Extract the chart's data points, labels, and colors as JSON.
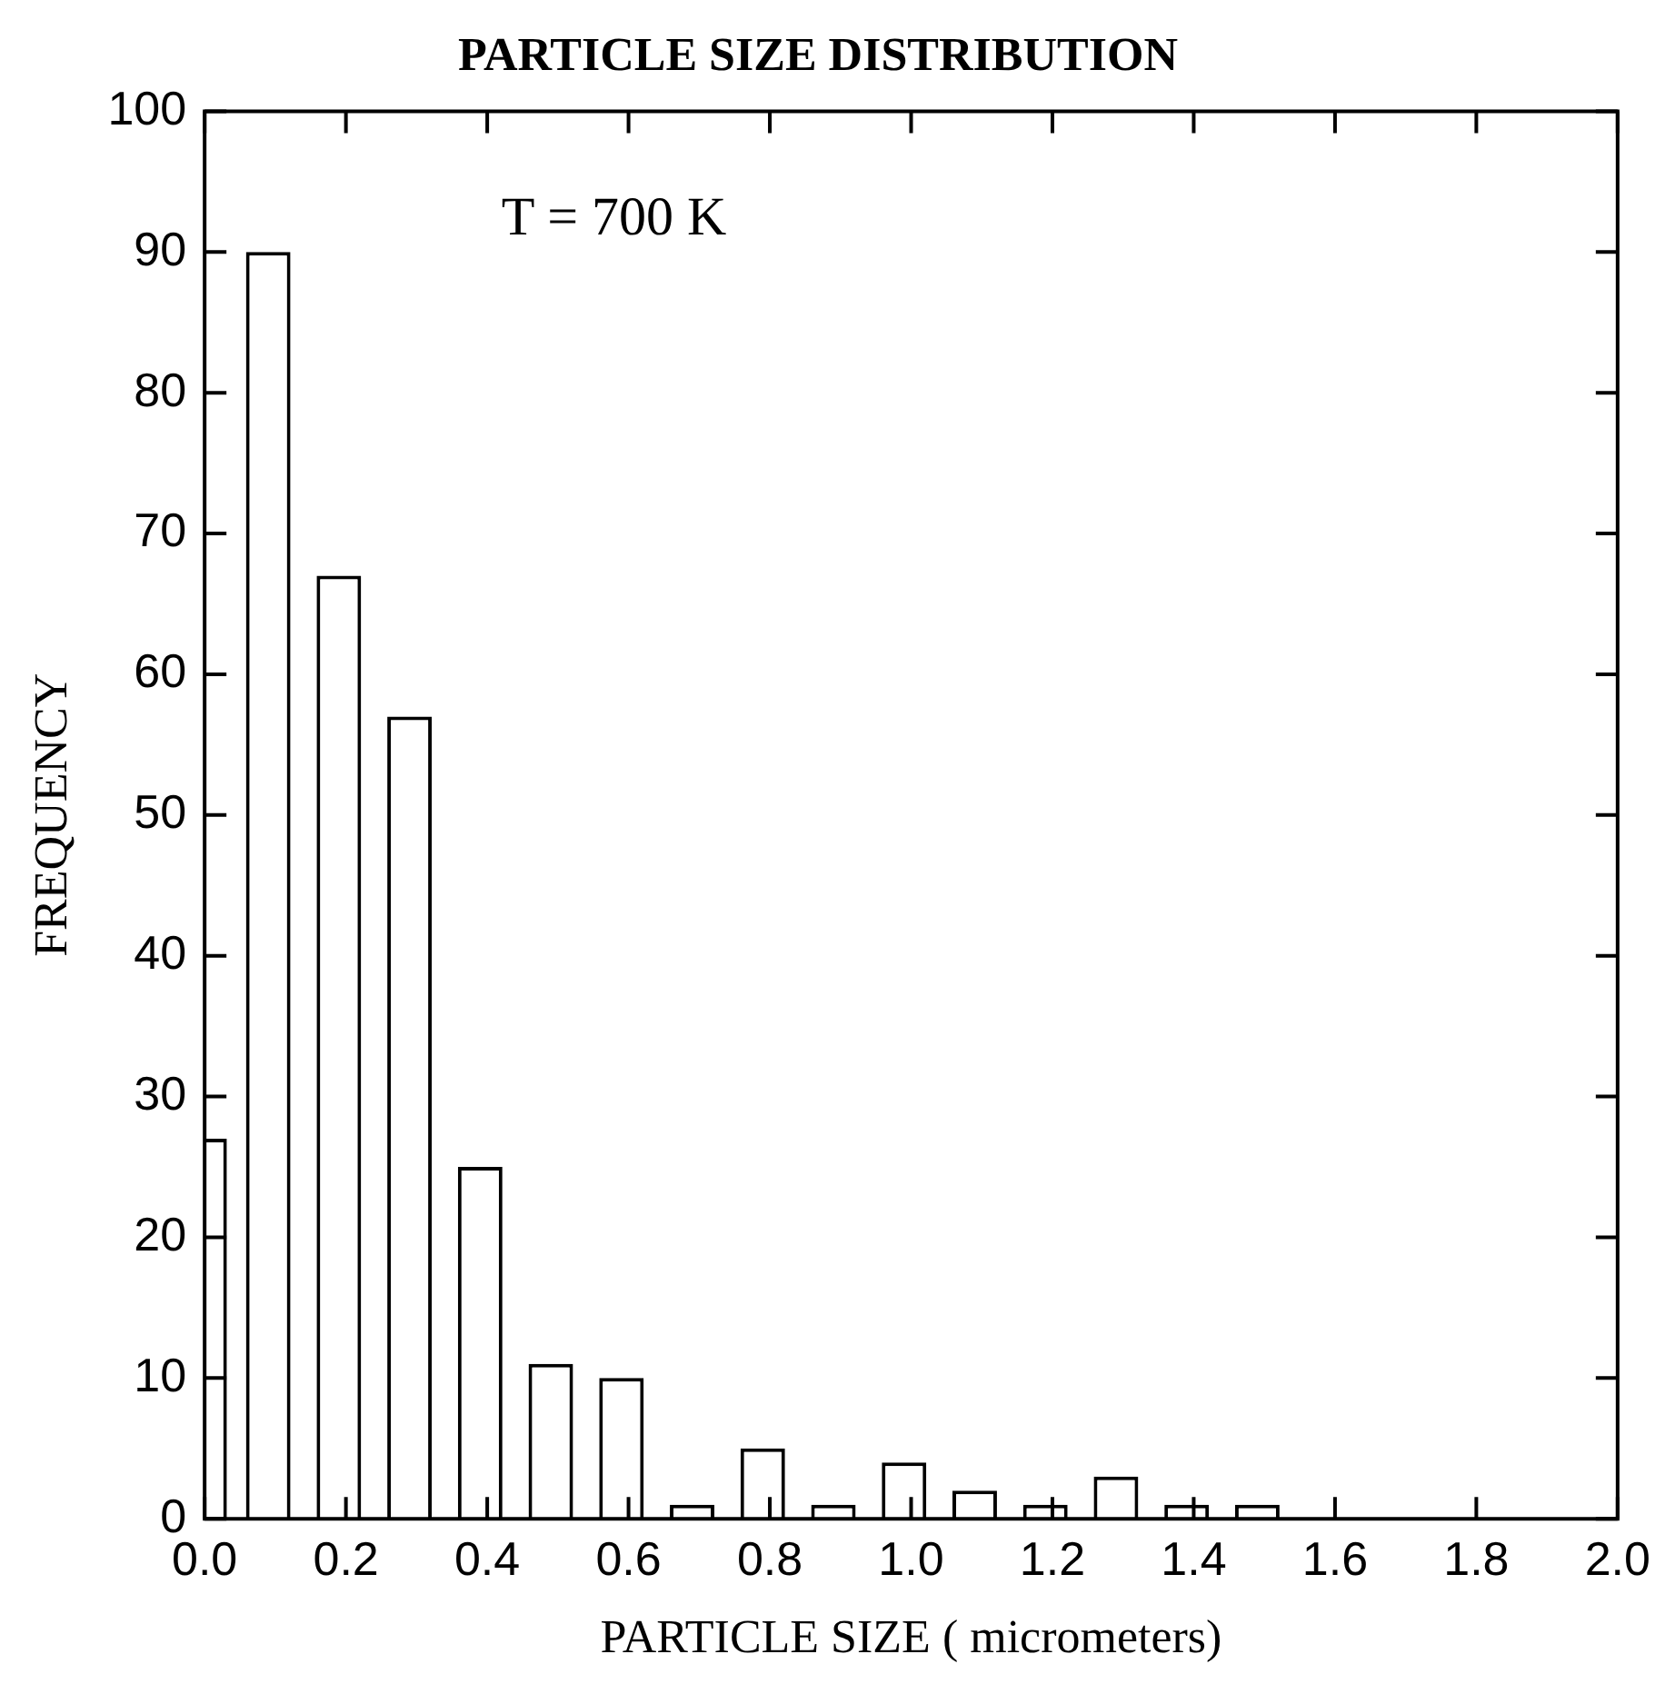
{
  "chart_data": {
    "type": "bar",
    "title": "PARTICLE SIZE DISTRIBUTION",
    "xlabel": "PARTICLE SIZE ( micrometers)",
    "ylabel": "FREQUENCY",
    "annotations": [
      "T = 700 K"
    ],
    "x": [
      0,
      0.09,
      0.19,
      0.29,
      0.39,
      0.49,
      0.59,
      0.69,
      0.79,
      0.89,
      0.99,
      1.09,
      1.19,
      1.29,
      1.39,
      1.49
    ],
    "values": [
      27,
      90,
      67,
      57,
      25,
      11,
      10,
      1,
      5,
      1,
      4,
      2,
      1,
      3,
      1,
      1
    ],
    "color": "#ffffff",
    "xlim": [
      0,
      2
    ],
    "xticks": [
      {
        "value": 0,
        "label": "0.0"
      },
      {
        "value": 0.2,
        "label": "0.2"
      },
      {
        "value": 0.4,
        "label": "0.4"
      },
      {
        "value": 0.6,
        "label": "0.6"
      },
      {
        "value": 0.8,
        "label": "0.8"
      },
      {
        "value": 1,
        "label": "1.0"
      },
      {
        "value": 1.2,
        "label": "1.2"
      },
      {
        "value": 1.4,
        "label": "1.4"
      },
      {
        "value": 1.6,
        "label": "1.6"
      },
      {
        "value": 1.8,
        "label": "1.8"
      },
      {
        "value": 2,
        "label": "2.0"
      }
    ],
    "ylim": [
      0,
      100
    ],
    "yticks": [
      0,
      10,
      20,
      30,
      40,
      50,
      60,
      70,
      80,
      90,
      100
    ],
    "grid": false,
    "legend": false
  }
}
